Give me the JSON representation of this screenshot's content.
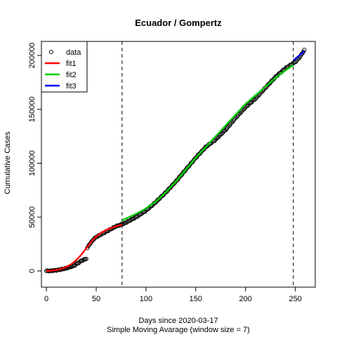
{
  "chart_data": {
    "type": "scatter",
    "title": "Ecuador / Gompertz",
    "xlabel": "Days since 2020-03-17",
    "xlabel_sub": "Simple Moving Avarage (window size = 7)",
    "ylabel": "Cumulative Cases",
    "xlim": [
      -5,
      270
    ],
    "ylim": [
      -15000,
      213000
    ],
    "x_ticks": [
      0,
      50,
      100,
      150,
      200,
      250
    ],
    "y_ticks": [
      0,
      50000,
      100000,
      150000,
      200000
    ],
    "vlines": [
      76,
      248
    ],
    "legend": {
      "position": "top-left",
      "entries": [
        {
          "label": "data",
          "kind": "point"
        },
        {
          "label": "fit1",
          "kind": "line",
          "color": "#ff0000"
        },
        {
          "label": "fit2",
          "kind": "line",
          "color": "#00cd00"
        },
        {
          "label": "fit3",
          "kind": "line",
          "color": "#0000ff"
        }
      ]
    },
    "data_anchors": [
      [
        0,
        0
      ],
      [
        5,
        200
      ],
      [
        10,
        700
      ],
      [
        15,
        1500
      ],
      [
        20,
        2600
      ],
      [
        25,
        4000
      ],
      [
        28,
        5000
      ],
      [
        30,
        6500
      ],
      [
        33,
        8000
      ],
      [
        35,
        9500
      ],
      [
        38,
        10500
      ],
      [
        40,
        11500
      ],
      [
        41,
        21000
      ],
      [
        43,
        24500
      ],
      [
        45,
        26500
      ],
      [
        47,
        29000
      ],
      [
        50,
        31500
      ],
      [
        55,
        34000
      ],
      [
        60,
        36500
      ],
      [
        65,
        39000
      ],
      [
        70,
        41500
      ],
      [
        75,
        43000
      ],
      [
        80,
        45000
      ],
      [
        85,
        47500
      ],
      [
        90,
        50000
      ],
      [
        95,
        53000
      ],
      [
        100,
        56000
      ],
      [
        105,
        60000
      ],
      [
        110,
        64000
      ],
      [
        120,
        73000
      ],
      [
        130,
        83000
      ],
      [
        140,
        94000
      ],
      [
        150,
        105000
      ],
      [
        160,
        115000
      ],
      [
        170,
        122000
      ],
      [
        180,
        131000
      ],
      [
        190,
        142000
      ],
      [
        200,
        152000
      ],
      [
        210,
        160000
      ],
      [
        220,
        170000
      ],
      [
        230,
        180000
      ],
      [
        240,
        188000
      ],
      [
        250,
        194000
      ],
      [
        255,
        199000
      ],
      [
        259,
        205000
      ]
    ],
    "series": [
      {
        "name": "fit1",
        "color": "#ff0000",
        "x": [
          0,
          5,
          10,
          15,
          20,
          25,
          30,
          35,
          40,
          45,
          50,
          55,
          60,
          65,
          70,
          76
        ],
        "y": [
          0,
          300,
          900,
          2000,
          3700,
          6300,
          10000,
          15000,
          21000,
          27000,
          32000,
          35500,
          38000,
          40000,
          41500,
          43000
        ]
      },
      {
        "name": "fit2",
        "color": "#00cd00",
        "x": [
          76,
          90,
          100,
          110,
          120,
          130,
          140,
          150,
          160,
          170,
          180,
          190,
          200,
          210,
          220,
          230,
          240,
          248
        ],
        "y": [
          47000,
          53000,
          58000,
          64500,
          73000,
          83000,
          94000,
          105000,
          115000,
          125000,
          135000,
          145000,
          155000,
          163000,
          171000,
          179000,
          186000,
          191000
        ]
      },
      {
        "name": "fit3",
        "color": "#0000ff",
        "x": [
          248,
          252,
          256,
          259
        ],
        "y": [
          195500,
          198500,
          201500,
          204000
        ]
      }
    ]
  }
}
